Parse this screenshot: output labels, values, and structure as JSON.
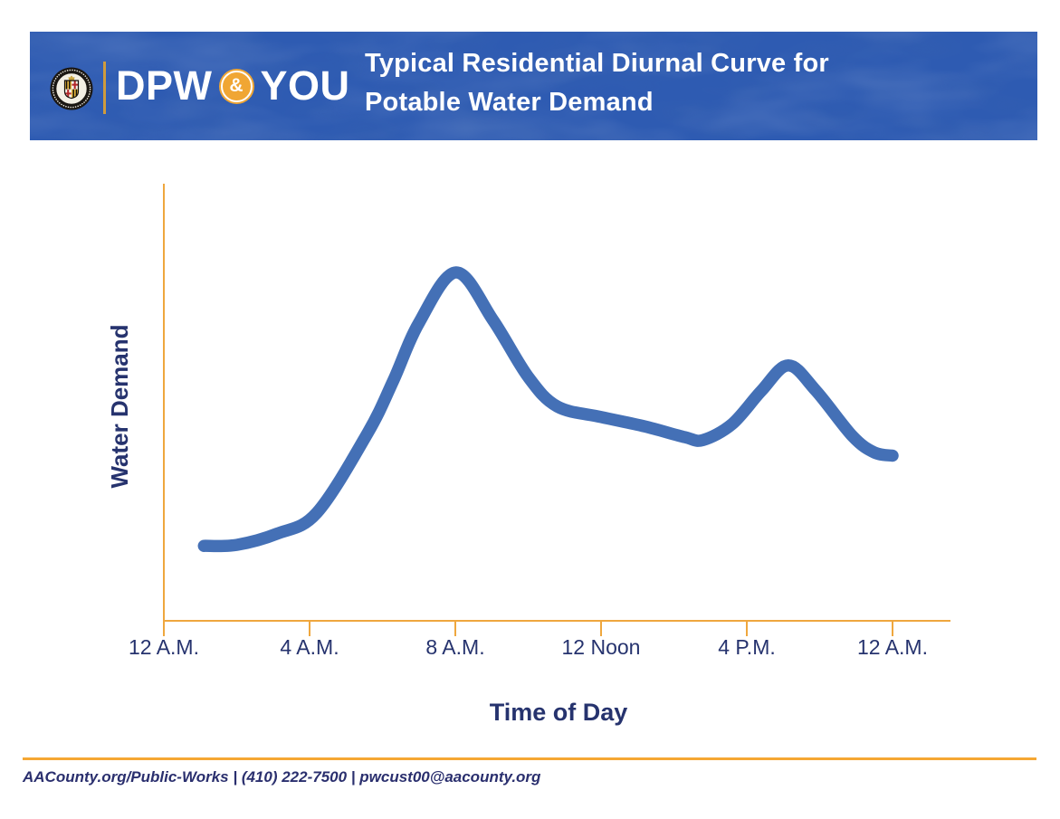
{
  "header": {
    "seal": {
      "icon": "county-seal"
    },
    "brand": {
      "dpw": "DPW",
      "amp": "&",
      "you": "YOU"
    },
    "title_line1": "Typical Residential Diurnal Curve for",
    "title_line2": "Potable Water Demand"
  },
  "chart_data": {
    "type": "line",
    "title": "Typical Residential Diurnal Curve for Potable Water Demand",
    "xlabel": "Time of Day",
    "ylabel": "Water Demand",
    "x_ticks": [
      "12 A.M.",
      "4 A.M.",
      "8 A.M.",
      "12 Noon",
      "4 P.M.",
      "12 A.M."
    ],
    "y_ticks": [],
    "grid": false,
    "legend": false,
    "axis_color": "#EFA73E",
    "line_color": "#4470B6",
    "line_width": 13.5,
    "ylim_note": "y axis unlabeled; demand values normalized so morning peak = 1.0",
    "series": [
      {
        "name": "Water Demand",
        "points": [
          {
            "hour": 1.1,
            "x": 0.055,
            "y": 0.215
          },
          {
            "hour": 2,
            "x": 0.1,
            "y": 0.218
          },
          {
            "hour": 3.1,
            "x": 0.155,
            "y": 0.25
          },
          {
            "hour": 4.2,
            "x": 0.21,
            "y": 0.31
          },
          {
            "hour": 5.6,
            "x": 0.28,
            "y": 0.54
          },
          {
            "hour": 6.3,
            "x": 0.315,
            "y": 0.69
          },
          {
            "hour": 7,
            "x": 0.35,
            "y": 0.855
          },
          {
            "hour": 8,
            "x": 0.401,
            "y": 1.0
          },
          {
            "hour": 9,
            "x": 0.452,
            "y": 0.862
          },
          {
            "hour": 10,
            "x": 0.5,
            "y": 0.7
          },
          {
            "hour": 10.8,
            "x": 0.54,
            "y": 0.615
          },
          {
            "hour": 12,
            "x": 0.6,
            "y": 0.585
          },
          {
            "hour": 13.2,
            "x": 0.66,
            "y": 0.558
          },
          {
            "hour": 14.3,
            "x": 0.715,
            "y": 0.527
          },
          {
            "hour": 14.8,
            "x": 0.74,
            "y": 0.519
          },
          {
            "hour": 15.6,
            "x": 0.78,
            "y": 0.565
          },
          {
            "hour": 16.8,
            "x": 0.82,
            "y": 0.66
          },
          {
            "hour": 18.3,
            "x": 0.857,
            "y": 0.733
          },
          {
            "hour": 19.8,
            "x": 0.895,
            "y": 0.66
          },
          {
            "hour": 21.8,
            "x": 0.945,
            "y": 0.53
          },
          {
            "hour": 23,
            "x": 0.975,
            "y": 0.483
          },
          {
            "hour": 24,
            "x": 1.0,
            "y": 0.474
          }
        ]
      }
    ]
  },
  "footer": {
    "text": "AACounty.org/Public-Works | (410) 222-7500 | pwcust00@aacounty.org"
  },
  "colors": {
    "banner_blue": "#2E5BB2",
    "gold": "#EFA73E",
    "navy": "#26336E",
    "curve_blue": "#4470B6",
    "white": "#FFFFFF"
  }
}
